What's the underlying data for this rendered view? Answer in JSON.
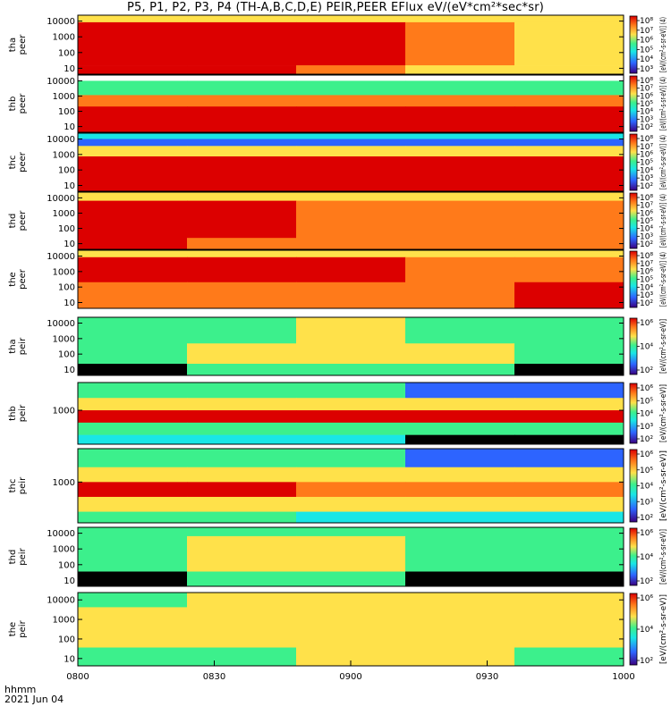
{
  "title": "P5, P1, P2, P3, P4 (TH-A,B,C,D,E) PEIR,PEER EFlux eV/(eV*cm²*sec*sr)",
  "footer": {
    "time_label": "hhmm",
    "date_label": "2021 Jun 04"
  },
  "colors": {
    "red": "#dc0000",
    "orange": "#ff7a1a",
    "yellow": "#ffe14a",
    "green": "#3cf08c",
    "cyan": "#19e6e6",
    "blue": "#2d64ff",
    "black": "#000000"
  },
  "chart_data": {
    "type": "heatmap",
    "x_axis": {
      "ticks": [
        "0800",
        "0830",
        "0900",
        "0930",
        "1000"
      ]
    },
    "panels": [
      {
        "id": "tha-peer",
        "label": [
          "tha",
          "peer"
        ],
        "yticks": [
          "10000",
          "1000",
          "100",
          "10"
        ],
        "colorbar_ticks": [
          "10⁸",
          "10⁷",
          "10⁶",
          "10⁵",
          "10⁴",
          "10³"
        ],
        "colorbar_title": "[eV/(cm²-s-sr-eV)] (4)",
        "bands": [
          {
            "from": 0.0,
            "to": 0.12,
            "colors": [
              "yellow",
              "yellow",
              "yellow",
              "yellow",
              "yellow"
            ]
          },
          {
            "from": 0.12,
            "to": 0.85,
            "colors": [
              "red",
              "red",
              "red",
              "orange",
              "yellow"
            ]
          },
          {
            "from": 0.85,
            "to": 1.0,
            "colors": [
              "red",
              "red",
              "orange",
              "yellow",
              "yellow"
            ]
          }
        ]
      },
      {
        "id": "thb-peer",
        "label": [
          "thb",
          "peer"
        ],
        "yticks": [
          "10000",
          "1000",
          "100",
          "10"
        ],
        "colorbar_ticks": [
          "10⁸",
          "10⁷",
          "10⁶",
          "10⁵",
          "10⁴",
          "10³",
          "10²"
        ],
        "colorbar_title": "[eV/(cm²-s-sr-eV)] (4)",
        "bands": [
          {
            "from": 0.0,
            "to": 0.1,
            "colors": [
              "white",
              "white",
              "white",
              "white",
              "white"
            ]
          },
          {
            "from": 0.1,
            "to": 0.35,
            "colors": [
              "green",
              "green",
              "green",
              "green",
              "green"
            ]
          },
          {
            "from": 0.35,
            "to": 0.55,
            "colors": [
              "orange",
              "orange",
              "orange",
              "orange",
              "orange"
            ]
          },
          {
            "from": 0.55,
            "to": 1.0,
            "colors": [
              "red",
              "red",
              "red",
              "red",
              "red"
            ]
          }
        ]
      },
      {
        "id": "thc-peer",
        "label": [
          "thc",
          "peer"
        ],
        "yticks": [
          "10000",
          "1000",
          "100",
          "10"
        ],
        "colorbar_ticks": [
          "10⁸",
          "10⁷",
          "10⁶",
          "10⁵",
          "10⁴",
          "10³",
          "10²"
        ],
        "colorbar_title": "[eV/(cm²-s-sr-eV)] (4)",
        "bands": [
          {
            "from": 0.0,
            "to": 0.1,
            "colors": [
              "cyan",
              "cyan",
              "cyan",
              "cyan",
              "cyan"
            ]
          },
          {
            "from": 0.1,
            "to": 0.22,
            "colors": [
              "blue",
              "blue",
              "blue",
              "blue",
              "blue"
            ]
          },
          {
            "from": 0.22,
            "to": 0.4,
            "colors": [
              "yellow",
              "yellow",
              "yellow",
              "yellow",
              "yellow"
            ]
          },
          {
            "from": 0.4,
            "to": 1.0,
            "colors": [
              "red",
              "red",
              "red",
              "red",
              "red"
            ]
          }
        ]
      },
      {
        "id": "thd-peer",
        "label": [
          "thd",
          "peer"
        ],
        "yticks": [
          "10000",
          "1000",
          "100",
          "10"
        ],
        "colorbar_ticks": [
          "10⁸",
          "10⁷",
          "10⁶",
          "10⁵",
          "10⁴",
          "10³",
          "10²"
        ],
        "colorbar_title": "[eV/(cm²-s-sr-eV)] (4)",
        "bands": [
          {
            "from": 0.0,
            "to": 0.15,
            "colors": [
              "yellow",
              "yellow",
              "yellow",
              "yellow",
              "yellow"
            ]
          },
          {
            "from": 0.15,
            "to": 0.8,
            "colors": [
              "red",
              "red",
              "orange",
              "orange",
              "orange"
            ]
          },
          {
            "from": 0.8,
            "to": 1.0,
            "colors": [
              "red",
              "orange",
              "orange",
              "orange",
              "orange"
            ]
          }
        ]
      },
      {
        "id": "the-peer",
        "label": [
          "the",
          "peer"
        ],
        "yticks": [
          "10000",
          "1000",
          "100",
          "10"
        ],
        "colorbar_ticks": [
          "10⁸",
          "10⁷",
          "10⁶",
          "10⁵",
          "10⁴",
          "10³",
          "10²"
        ],
        "colorbar_title": "[eV/(cm²-s-sr-eV)] (4)",
        "bands": [
          {
            "from": 0.0,
            "to": 0.12,
            "colors": [
              "yellow",
              "yellow",
              "yellow",
              "yellow",
              "yellow"
            ]
          },
          {
            "from": 0.12,
            "to": 0.55,
            "colors": [
              "red",
              "red",
              "red",
              "orange",
              "orange"
            ]
          },
          {
            "from": 0.55,
            "to": 1.0,
            "colors": [
              "orange",
              "orange",
              "orange",
              "orange",
              "red"
            ]
          }
        ]
      },
      {
        "id": "tha-peir",
        "label": [
          "tha",
          "peir"
        ],
        "yticks": [
          "10000",
          "1000",
          "100",
          "10"
        ],
        "colorbar_ticks": [
          "10⁶",
          "10⁴",
          "10²"
        ],
        "colorbar_title": "[eV/(cm²-s-sr-eV)]",
        "bands": [
          {
            "from": 0.0,
            "to": 0.45,
            "colors": [
              "green",
              "green",
              "yellow",
              "green",
              "green"
            ]
          },
          {
            "from": 0.45,
            "to": 0.8,
            "colors": [
              "green",
              "yellow",
              "yellow",
              "yellow",
              "green"
            ]
          },
          {
            "from": 0.8,
            "to": 1.0,
            "colors": [
              "black",
              "green",
              "green",
              "green",
              "black"
            ]
          }
        ]
      },
      {
        "id": "thb-peir",
        "label": [
          "thb",
          "peir"
        ],
        "yticks": [
          "1000"
        ],
        "colorbar_ticks": [
          "10⁶",
          "10⁵",
          "10⁴",
          "10³",
          "10²"
        ],
        "colorbar_title": "[eV/(cm²-s-sr-eV)]",
        "bands": [
          {
            "from": 0.0,
            "to": 0.25,
            "colors": [
              "green",
              "green",
              "green",
              "blue",
              "blue"
            ]
          },
          {
            "from": 0.25,
            "to": 0.45,
            "colors": [
              "yellow",
              "yellow",
              "yellow",
              "yellow",
              "yellow"
            ]
          },
          {
            "from": 0.45,
            "to": 0.65,
            "colors": [
              "red",
              "red",
              "red",
              "red",
              "red"
            ]
          },
          {
            "from": 0.65,
            "to": 0.85,
            "colors": [
              "green",
              "green",
              "green",
              "green",
              "green"
            ]
          },
          {
            "from": 0.85,
            "to": 1.0,
            "colors": [
              "cyan",
              "cyan",
              "cyan",
              "black",
              "black"
            ]
          }
        ]
      },
      {
        "id": "thc-peir",
        "label": [
          "thc",
          "peir"
        ],
        "yticks": [
          "1000"
        ],
        "colorbar_ticks": [
          "10⁶",
          "10⁵",
          "10⁴",
          "10³",
          "10²"
        ],
        "colorbar_title": "[eV/(cm²-s-sr-eV)]",
        "bands": [
          {
            "from": 0.0,
            "to": 0.25,
            "colors": [
              "green",
              "green",
              "green",
              "blue",
              "blue"
            ]
          },
          {
            "from": 0.25,
            "to": 0.45,
            "colors": [
              "yellow",
              "yellow",
              "yellow",
              "yellow",
              "yellow"
            ]
          },
          {
            "from": 0.45,
            "to": 0.65,
            "colors": [
              "red",
              "red",
              "orange",
              "orange",
              "orange"
            ]
          },
          {
            "from": 0.65,
            "to": 0.85,
            "colors": [
              "yellow",
              "yellow",
              "yellow",
              "yellow",
              "yellow"
            ]
          },
          {
            "from": 0.85,
            "to": 1.0,
            "colors": [
              "green",
              "green",
              "cyan",
              "cyan",
              "cyan"
            ]
          }
        ]
      },
      {
        "id": "thd-peir",
        "label": [
          "thd",
          "peir"
        ],
        "yticks": [
          "10000",
          "1000",
          "100",
          "10"
        ],
        "colorbar_ticks": [
          "10⁶",
          "10⁴",
          "10²"
        ],
        "colorbar_title": "[eV/(cm²-s-sr-eV)]",
        "bands": [
          {
            "from": 0.0,
            "to": 0.15,
            "colors": [
              "green",
              "green",
              "green",
              "green",
              "green"
            ]
          },
          {
            "from": 0.15,
            "to": 0.75,
            "colors": [
              "green",
              "yellow",
              "yellow",
              "green",
              "green"
            ]
          },
          {
            "from": 0.75,
            "to": 1.0,
            "colors": [
              "black",
              "green",
              "green",
              "black",
              "black"
            ]
          }
        ]
      },
      {
        "id": "the-peir",
        "label": [
          "the",
          "peir"
        ],
        "yticks": [
          "10000",
          "1000",
          "100",
          "10"
        ],
        "colorbar_ticks": [
          "10⁶",
          "10⁴",
          "10²"
        ],
        "colorbar_title": "[eV/(cm²-s-sr-eV)]",
        "bands": [
          {
            "from": 0.0,
            "to": 0.2,
            "colors": [
              "green",
              "yellow",
              "yellow",
              "yellow",
              "yellow"
            ]
          },
          {
            "from": 0.2,
            "to": 0.75,
            "colors": [
              "yellow",
              "yellow",
              "yellow",
              "yellow",
              "yellow"
            ]
          },
          {
            "from": 0.75,
            "to": 1.0,
            "colors": [
              "green",
              "green",
              "yellow",
              "yellow",
              "green"
            ]
          }
        ]
      }
    ]
  }
}
